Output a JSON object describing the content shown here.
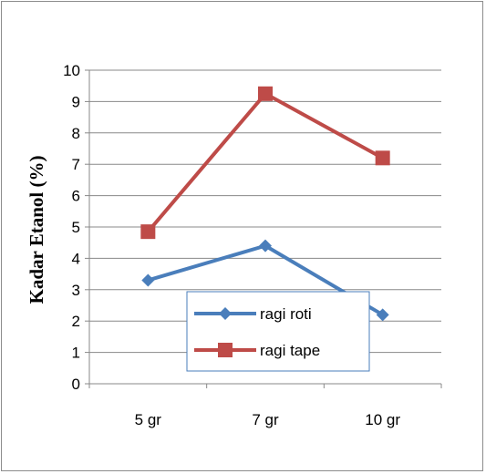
{
  "chart_data": {
    "type": "line",
    "categories": [
      "5 gr",
      "7 gr",
      "10 gr"
    ],
    "series": [
      {
        "name": "ragi roti",
        "values": [
          3.3,
          4.4,
          2.2
        ],
        "color": "#4a7ebb",
        "marker": "diamond"
      },
      {
        "name": "ragi tape",
        "values": [
          4.85,
          9.25,
          7.2
        ],
        "color": "#be4b48",
        "marker": "square"
      }
    ],
    "ylabel": "Kadar Etanol (%)",
    "xlabel": "",
    "ylim": [
      0,
      10
    ],
    "yticks": [
      "0",
      "1",
      "2",
      "3",
      "4",
      "5",
      "6",
      "7",
      "8",
      "9",
      "10"
    ],
    "grid": true,
    "legend_position": "bottom-center, inside plot"
  }
}
